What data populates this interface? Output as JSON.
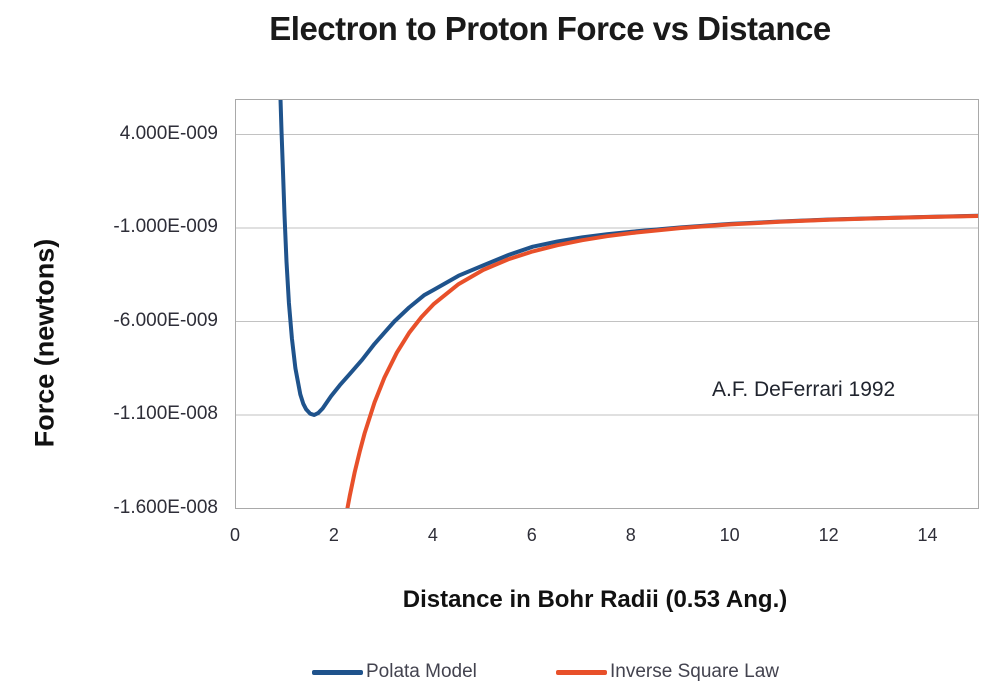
{
  "chart_data": {
    "type": "line",
    "title": "Electron to Proton Force vs Distance",
    "xlabel": "Distance in Bohr Radii (0.53 Ang.)",
    "ylabel": "Force (newtons)",
    "annotation": "A.F. DeFerrari 1992",
    "xlim": [
      0,
      15
    ],
    "ylim": [
      -1.6e-08,
      5.9e-09
    ],
    "grid": "horizontal-only",
    "legend_position": "bottom",
    "x_ticks": [
      0,
      2,
      4,
      6,
      8,
      10,
      12,
      14
    ],
    "y_ticks": [
      {
        "label": "4.000E-009",
        "value": 4e-09,
        "gridline": true
      },
      {
        "label": "-1.000E-009",
        "value": -1e-09,
        "gridline": true
      },
      {
        "label": "-6.000E-009",
        "value": -6e-09,
        "gridline": true
      },
      {
        "label": "-1.100E-008",
        "value": -1.1e-08,
        "gridline": true
      },
      {
        "label": "-1.600E-008",
        "value": -1.6e-08,
        "gridline": false
      }
    ],
    "series": [
      {
        "id": "polata-model",
        "name": "Polata Model",
        "color": "#1f538c",
        "x": [
          0.9,
          0.92,
          0.95,
          0.98,
          1.02,
          1.07,
          1.13,
          1.2,
          1.3,
          1.36,
          1.42,
          1.5,
          1.58,
          1.66,
          1.75,
          1.92,
          2.1,
          2.3,
          2.55,
          2.8,
          3.0,
          3.2,
          3.5,
          3.8,
          4.0,
          4.5,
          5.0,
          5.5,
          6.0,
          6.5,
          7.0,
          7.5,
          8.0,
          9.0,
          10.0,
          11.0,
          12.0,
          13.0,
          14.0,
          15.0
        ],
        "y": [
          5.9e-09,
          4.2e-09,
          2e-09,
          -3e-10,
          -2.8e-09,
          -5e-09,
          -6.9e-09,
          -8.5e-09,
          -9.9e-09,
          -1.04e-08,
          -1.07e-08,
          -1.093e-08,
          -1.1e-08,
          -1.09e-08,
          -1.065e-08,
          -1e-08,
          -9.4e-09,
          -8.8e-09,
          -8.05e-09,
          -7.2e-09,
          -6.6e-09,
          -6e-09,
          -5.25e-09,
          -4.6e-09,
          -4.3e-09,
          -3.55e-09,
          -3e-09,
          -2.45e-09,
          -2e-09,
          -1.72e-09,
          -1.5e-09,
          -1.33e-09,
          -1.2e-09,
          -9.7e-10,
          -7.8e-10,
          -6.5e-10,
          -5.45e-10,
          -4.7e-10,
          -4.05e-10,
          -3.5e-10
        ]
      },
      {
        "id": "inverse-square-law",
        "name": "Inverse Square Law",
        "color": "#e8502a",
        "x": [
          2.2,
          2.3,
          2.4,
          2.5,
          2.6,
          2.8,
          3.0,
          3.25,
          3.5,
          3.75,
          4.0,
          4.5,
          5.0,
          5.5,
          6.0,
          6.5,
          7.0,
          7.5,
          8.0,
          9.0,
          10.0,
          11.0,
          12.0,
          13.0,
          14.0,
          15.0
        ],
        "y": [
          -1.674e-08,
          -1.531e-08,
          -1.406e-08,
          -1.296e-08,
          -1.198e-08,
          -1.033e-08,
          -9e-09,
          -7.67e-09,
          -6.61e-09,
          -5.76e-09,
          -5.06e-09,
          -4e-09,
          -3.24e-09,
          -2.68e-09,
          -2.25e-09,
          -1.92e-09,
          -1.65e-09,
          -1.44e-09,
          -1.27e-09,
          -1e-09,
          -8.1e-10,
          -6.7e-10,
          -5.6e-10,
          -4.8e-10,
          -4.1e-10,
          -3.6e-10
        ]
      }
    ]
  }
}
